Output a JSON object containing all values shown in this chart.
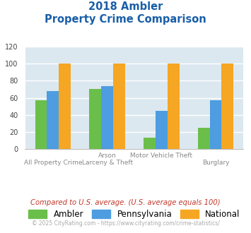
{
  "title_line1": "2018 Ambler",
  "title_line2": "Property Crime Comparison",
  "x_labels_top": [
    "",
    "Arson",
    "Motor Vehicle Theft",
    ""
  ],
  "x_labels_bottom": [
    "All Property Crime",
    "Larceny & Theft",
    "",
    "Burglary"
  ],
  "ambler": [
    57,
    70,
    13,
    25
  ],
  "pennsylvania": [
    68,
    74,
    45,
    57
  ],
  "national": [
    100,
    100,
    100,
    100
  ],
  "ambler_color": "#6abf4b",
  "pennsylvania_color": "#4d9de0",
  "national_color": "#f5a623",
  "ylim": [
    0,
    120
  ],
  "yticks": [
    0,
    20,
    40,
    60,
    80,
    100,
    120
  ],
  "bg_color": "#dce8f0",
  "grid_color": "#ffffff",
  "title_color": "#1a5fa8",
  "footnote1": "Compared to U.S. average. (U.S. average equals 100)",
  "footnote2": "© 2025 CityRating.com - https://www.cityrating.com/crime-statistics/",
  "footnote1_color": "#c0392b",
  "footnote2_color": "#aaaaaa",
  "label_color": "#888888"
}
